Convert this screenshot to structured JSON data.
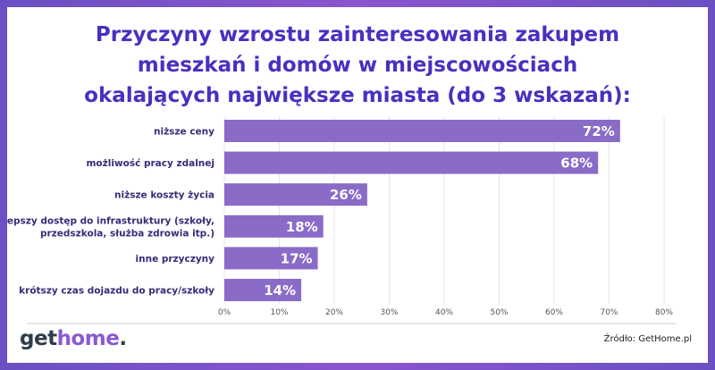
{
  "title_lines": [
    "Przyczyny wzrostu zainteresowania zakupem",
    "mieszkań i domów w miejscowościach",
    "okalających największe miasta (do 3 wskazań):"
  ],
  "chart_data": {
    "type": "bar",
    "orientation": "horizontal",
    "categories": [
      [
        "niższe ceny"
      ],
      [
        "możliwość pracy zdalnej"
      ],
      [
        "niższe koszty życia"
      ],
      [
        "lepszy dostęp do infrastruktury (szkoły,",
        "przedszkola, służba zdrowia itp.)"
      ],
      [
        "inne przyczyny"
      ],
      [
        "krótszy czas dojazdu do pracy/szkoły"
      ]
    ],
    "values": [
      72,
      68,
      26,
      18,
      17,
      14
    ],
    "value_labels": [
      "72%",
      "68%",
      "26%",
      "18%",
      "17%",
      "14%"
    ],
    "xlim": [
      0,
      80
    ],
    "ticks": [
      0,
      10,
      20,
      30,
      40,
      50,
      60,
      70,
      80
    ],
    "tick_labels": [
      "0%",
      "10%",
      "20%",
      "30%",
      "40%",
      "50%",
      "60%",
      "70%",
      "80%"
    ],
    "grid": true,
    "bar_color": "#8b6bc8"
  },
  "logo": {
    "part1": "get",
    "part2": "home",
    "part3": "."
  },
  "source": "Źródło: GetHome.pl"
}
